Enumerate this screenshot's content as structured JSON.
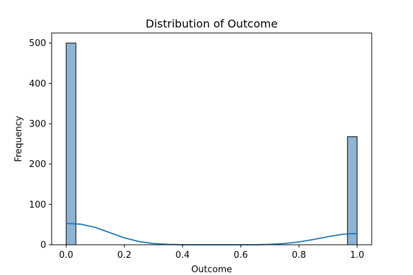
{
  "chart_data": {
    "type": "bar",
    "title": "Distribution of Outcome",
    "xlabel": "Outcome",
    "ylabel": "Frequency",
    "xlim": [
      -0.05,
      1.05
    ],
    "ylim": [
      0,
      525
    ],
    "xticks": [
      0.0,
      0.2,
      0.4,
      0.6,
      0.8,
      1.0
    ],
    "xtick_labels": [
      "0.0",
      "0.2",
      "0.4",
      "0.6",
      "0.8",
      "1.0"
    ],
    "yticks": [
      0,
      100,
      200,
      300,
      400,
      500
    ],
    "ytick_labels": [
      "0",
      "100",
      "200",
      "300",
      "400",
      "500"
    ],
    "grid": false,
    "bins": [
      {
        "x_start": 0.0,
        "x_end": 0.0333,
        "count": 500
      },
      {
        "x_start": 0.9667,
        "x_end": 1.0,
        "count": 268
      }
    ],
    "kde": {
      "x": [
        0.0,
        0.05,
        0.1,
        0.15,
        0.2,
        0.25,
        0.3,
        0.35,
        0.4,
        0.45,
        0.5,
        0.55,
        0.6,
        0.65,
        0.7,
        0.75,
        0.8,
        0.85,
        0.9,
        0.95,
        1.0
      ],
      "y": [
        53,
        51,
        43,
        30,
        17,
        8,
        3,
        1,
        0,
        0,
        0,
        0,
        0,
        0,
        1,
        3,
        7,
        13,
        20,
        26,
        28
      ]
    },
    "colors": {
      "bar_fill": "#8db4d3",
      "bar_edge": "#000000",
      "kde_line": "#1f77b4"
    }
  }
}
